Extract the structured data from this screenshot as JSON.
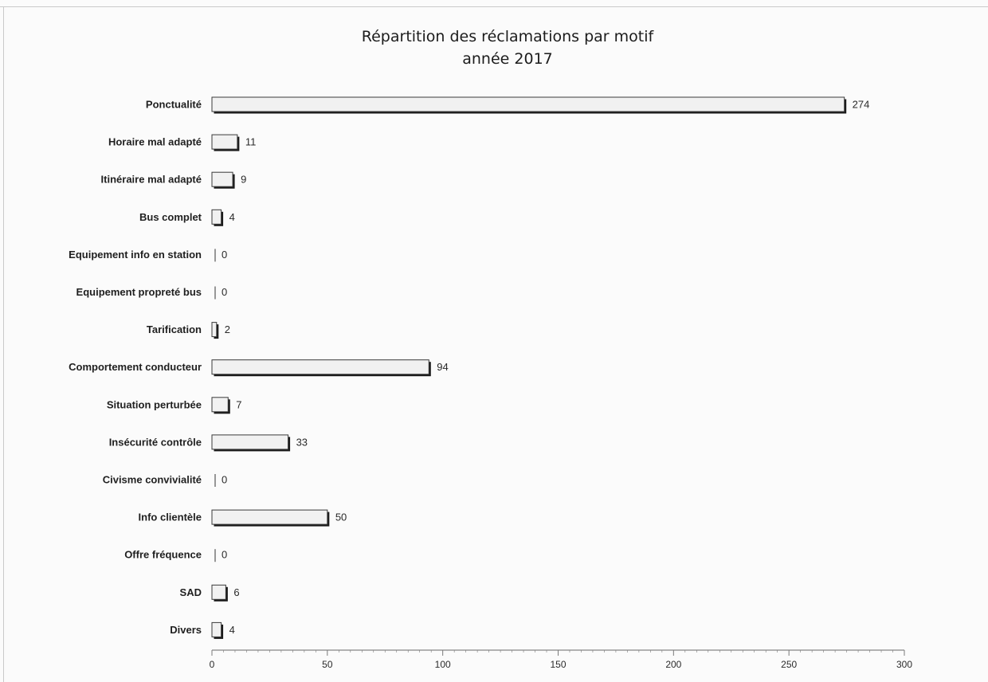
{
  "chart_data": {
    "type": "bar",
    "orientation": "horizontal",
    "title": "Répartition des réclamations par motif",
    "subtitle": "année 2017",
    "categories": [
      "Ponctualité",
      "Horaire mal adapté",
      "Itinéraire mal adapté",
      "Bus complet",
      "Equipement info en station",
      "Equipement propreté bus",
      "Tarification",
      "Comportement conducteur",
      "Situation perturbée",
      "Insécurité contrôle",
      "Civisme convivialité",
      "Info clientèle",
      "Offre fréquence",
      "SAD",
      "Divers"
    ],
    "values": [
      274,
      11,
      9,
      4,
      0,
      0,
      2,
      94,
      7,
      33,
      0,
      50,
      0,
      6,
      4
    ],
    "value_labels": [
      "274",
      "11",
      "9",
      "4",
      "0",
      "0",
      "2",
      "94",
      "7",
      "33",
      "0",
      "50",
      "0",
      "6",
      "4"
    ],
    "xlim": [
      0,
      300
    ],
    "x_ticks": [
      "0",
      "50",
      "100",
      "150",
      "200",
      "250",
      "300"
    ],
    "grid": false,
    "colors": {
      "bar_fill": "#f1f1f1",
      "bar_shadow": "#1a1a1a",
      "bar_outline": "#3a3a3a"
    }
  }
}
